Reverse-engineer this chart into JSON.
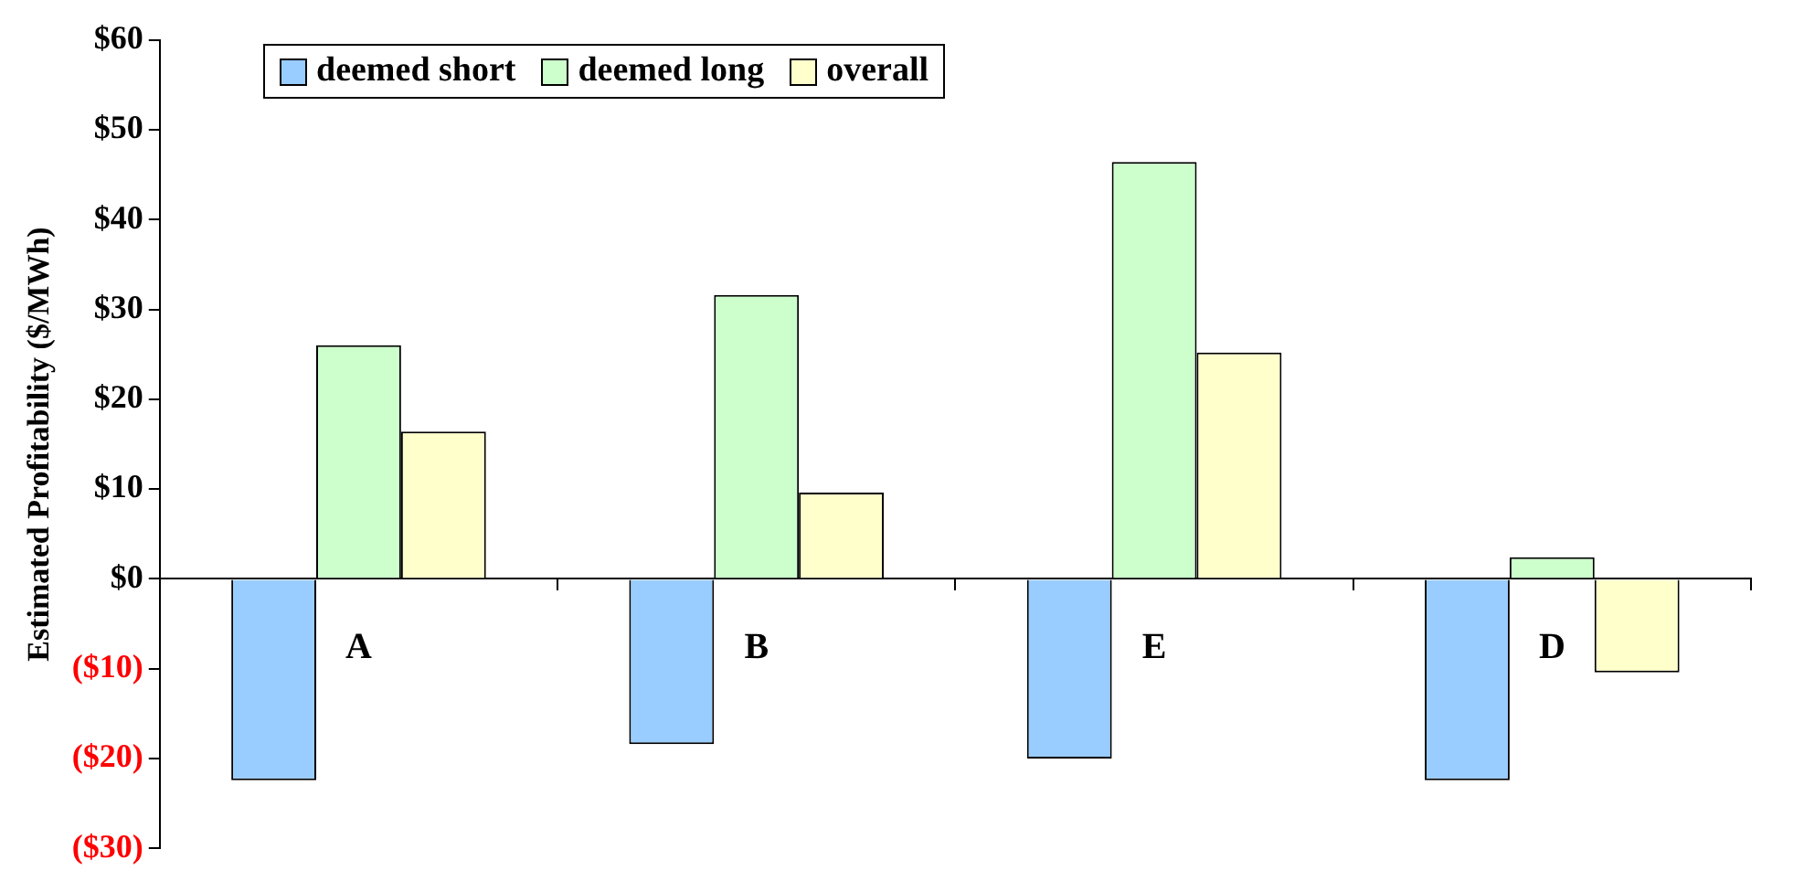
{
  "chart_data": {
    "type": "bar",
    "ylabel": "Estimated Profitability ($/MWh)",
    "categories": [
      "A",
      "B",
      "E",
      "D"
    ],
    "series": [
      {
        "name": "deemed short",
        "color": "#99ccff",
        "values": [
          -22.4,
          -18.4,
          -20,
          -22.4
        ]
      },
      {
        "name": "deemed long",
        "color": "#ccffcc",
        "values": [
          26,
          31.6,
          46.4,
          2.4
        ]
      },
      {
        "name": "overall",
        "color": "#ffffcc",
        "values": [
          16.4,
          9.6,
          25.2,
          -10.4
        ]
      }
    ],
    "ylim": [
      -30,
      60
    ],
    "yticks": [
      {
        "value": -30,
        "label": "($30)"
      },
      {
        "value": -20,
        "label": "($20)"
      },
      {
        "value": -10,
        "label": "($10)"
      },
      {
        "value": 0,
        "label": "$0"
      },
      {
        "value": 10,
        "label": "$10"
      },
      {
        "value": 20,
        "label": "$20"
      },
      {
        "value": 30,
        "label": "$30"
      },
      {
        "value": 40,
        "label": "$40"
      },
      {
        "value": 50,
        "label": "$50"
      },
      {
        "value": 60,
        "label": "$60"
      }
    ],
    "grid": false,
    "legend": "top left"
  }
}
